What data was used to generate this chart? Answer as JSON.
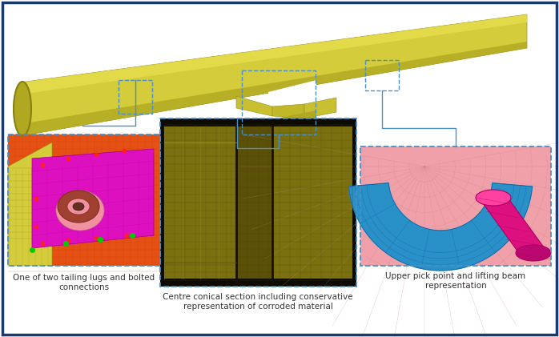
{
  "fig_width": 6.98,
  "fig_height": 4.21,
  "dpi": 100,
  "background_color": "#ffffff",
  "border_color": "#1a3a6b",
  "border_linewidth": 2.5,
  "label_left": "One of two tailing lugs and bolted\nconnections",
  "label_center": "Centre conical section including conservative\nrepresentation of corroded material",
  "label_right": "Upper pick point and lifting beam\nrepresentation",
  "label_fontsize": 7.5,
  "label_color": "#333333",
  "connector_color": "#4a90c8",
  "connector_linewidth": 1.0,
  "vessel_color": "#d4cc3a",
  "vessel_shadow": "#b0a820",
  "vessel_highlight": "#e8e050",
  "vessel_end_color": "#c0b828"
}
